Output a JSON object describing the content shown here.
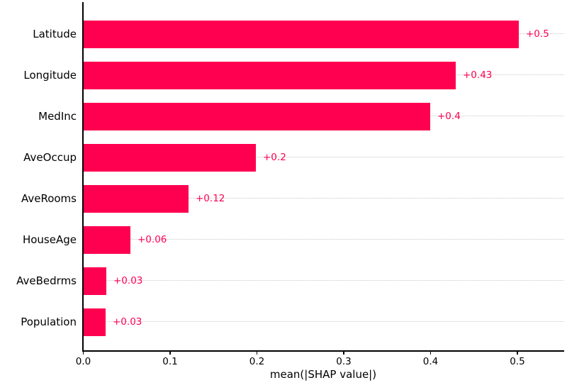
{
  "chart_data": {
    "type": "bar",
    "orientation": "horizontal",
    "title": "",
    "xlabel": "mean(|SHAP value|)",
    "ylabel": "",
    "categories": [
      "Latitude",
      "Longitude",
      "MedInc",
      "AveOccup",
      "AveRooms",
      "HouseAge",
      "AveBedrms",
      "Population"
    ],
    "values": [
      0.502,
      0.429,
      0.4,
      0.199,
      0.122,
      0.055,
      0.027,
      0.026
    ],
    "value_labels": [
      "+0.5",
      "+0.43",
      "+0.4",
      "+0.2",
      "+0.12",
      "+0.06",
      "+0.03",
      "+0.03"
    ],
    "x_tick_labels": [
      "0.0",
      "0.1",
      "0.2",
      "0.3",
      "0.4",
      "0.5"
    ],
    "x_tick_values": [
      0.0,
      0.1,
      0.2,
      0.3,
      0.4,
      0.5
    ],
    "xlim": [
      0.0,
      0.553
    ],
    "grid": "horizontal-dotted-per-row",
    "legend": "none",
    "bar_color": "#ff0051",
    "value_label_color": "#ff0051",
    "gridline_color": "#c9c9c9",
    "axis_color": "#000000",
    "text_color": "#000000",
    "background_color": "#ffffff"
  }
}
